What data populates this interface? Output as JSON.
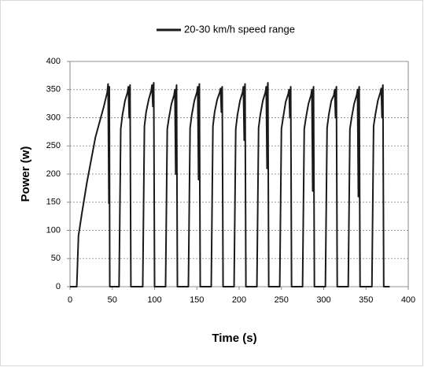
{
  "chart_data": {
    "type": "line",
    "xlabel": "Time (s)",
    "ylabel": "Power (w)",
    "legend": "top",
    "grid": true,
    "xlim": [
      0,
      400
    ],
    "xticks": [
      0,
      50,
      100,
      150,
      200,
      250,
      300,
      350,
      400
    ],
    "ylim": [
      0,
      400
    ],
    "yticks": [
      0,
      50,
      100,
      150,
      200,
      250,
      300,
      350,
      400
    ],
    "x": [
      0,
      8,
      10,
      14,
      20,
      30,
      40,
      44,
      45,
      46,
      46.5,
      47,
      58,
      60,
      62,
      65,
      68,
      69,
      70,
      70.5,
      71,
      72,
      86,
      88,
      90,
      93,
      96,
      97,
      98,
      98.5,
      99,
      100,
      113,
      115,
      117,
      120,
      123,
      124,
      125,
      125.5,
      126,
      127,
      140,
      142,
      144,
      147,
      150,
      151,
      152,
      152.5,
      153,
      154,
      167,
      169,
      171,
      174,
      177,
      178,
      179,
      179.5,
      180,
      181,
      194,
      196,
      198,
      201,
      204,
      205,
      206,
      206.5,
      207,
      208,
      221,
      223,
      225,
      228,
      231,
      232,
      233,
      233.5,
      234,
      235,
      248,
      250,
      252,
      255,
      258,
      259,
      260,
      260.5,
      261,
      262,
      275,
      277,
      279,
      282,
      285,
      286,
      287,
      287.5,
      288,
      289,
      302,
      304,
      306,
      309,
      312,
      313,
      314,
      314.5,
      315,
      316,
      329,
      331,
      333,
      336,
      339,
      340,
      341,
      341.5,
      342,
      343,
      357,
      359,
      361,
      364,
      367,
      368,
      369,
      369.5,
      370,
      371,
      378
    ],
    "series": [
      {
        "name": "20-30 km/h speed range",
        "color": "#1a1a1a",
        "values": [
          0,
          0,
          90,
          130,
          185,
          265,
          320,
          345,
          360,
          148,
          355,
          0,
          0,
          280,
          305,
          330,
          345,
          355,
          300,
          350,
          358,
          0,
          0,
          285,
          310,
          332,
          348,
          358,
          320,
          352,
          362,
          0,
          0,
          280,
          300,
          325,
          340,
          350,
          200,
          345,
          358,
          0,
          0,
          282,
          305,
          330,
          345,
          355,
          190,
          348,
          360,
          0,
          0,
          285,
          310,
          332,
          345,
          352,
          310,
          350,
          355,
          0,
          0,
          280,
          305,
          330,
          345,
          355,
          260,
          350,
          360,
          0,
          0,
          282,
          305,
          330,
          345,
          355,
          210,
          352,
          362,
          0,
          0,
          280,
          300,
          328,
          342,
          350,
          300,
          345,
          355,
          0,
          0,
          280,
          300,
          325,
          340,
          350,
          170,
          345,
          355,
          0,
          0,
          282,
          305,
          330,
          340,
          350,
          300,
          348,
          355,
          0,
          0,
          280,
          300,
          325,
          340,
          350,
          160,
          348,
          355,
          0,
          0,
          285,
          305,
          330,
          345,
          352,
          300,
          350,
          358,
          0,
          0
        ]
      }
    ]
  }
}
